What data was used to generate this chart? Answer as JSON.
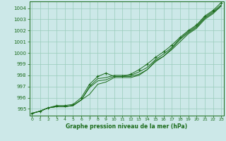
{
  "x": [
    0,
    1,
    2,
    3,
    4,
    5,
    6,
    7,
    8,
    9,
    10,
    11,
    12,
    13,
    14,
    15,
    16,
    17,
    18,
    19,
    20,
    21,
    22,
    23
  ],
  "line1": [
    994.6,
    994.8,
    995.1,
    995.2,
    995.2,
    995.3,
    995.8,
    996.3,
    997.2,
    997.4,
    997.8,
    997.8,
    997.8,
    998.0,
    998.5,
    999.3,
    999.7,
    1000.4,
    1001.2,
    1001.8,
    1002.3,
    1003.1,
    1003.6,
    1004.2
  ],
  "line2": [
    994.6,
    994.8,
    995.1,
    995.2,
    995.2,
    995.3,
    995.8,
    996.9,
    997.5,
    997.6,
    997.9,
    997.9,
    997.9,
    998.1,
    998.5,
    999.2,
    999.7,
    1000.3,
    1001.0,
    1001.7,
    1002.2,
    1003.0,
    1003.5,
    1004.2
  ],
  "line3": [
    994.6,
    994.8,
    995.1,
    995.2,
    995.2,
    995.3,
    995.8,
    997.0,
    997.7,
    997.8,
    998.0,
    998.0,
    998.0,
    998.3,
    998.7,
    999.4,
    999.9,
    1000.5,
    1001.3,
    1001.9,
    1002.4,
    1003.2,
    1003.7,
    1004.3
  ],
  "line4": [
    994.6,
    994.8,
    995.1,
    995.3,
    995.3,
    995.4,
    996.0,
    997.2,
    997.9,
    998.2,
    997.9,
    997.9,
    998.1,
    998.5,
    999.0,
    999.6,
    1000.1,
    1000.7,
    1001.4,
    1002.0,
    1002.5,
    1003.3,
    1003.8,
    1004.5
  ],
  "ylim": [
    994.4,
    1004.6
  ],
  "yticks": [
    995,
    996,
    997,
    998,
    999,
    1000,
    1001,
    1002,
    1003,
    1004
  ],
  "xticks": [
    0,
    1,
    2,
    3,
    4,
    5,
    6,
    7,
    8,
    9,
    10,
    11,
    12,
    13,
    14,
    15,
    16,
    17,
    18,
    19,
    20,
    21,
    22,
    23
  ],
  "xlim": [
    -0.3,
    23.3
  ],
  "line_color": "#1a6b1a",
  "bg_color": "#cce8e8",
  "grid_color": "#99ccbb",
  "xlabel": "Graphe pression niveau de la mer (hPa)"
}
